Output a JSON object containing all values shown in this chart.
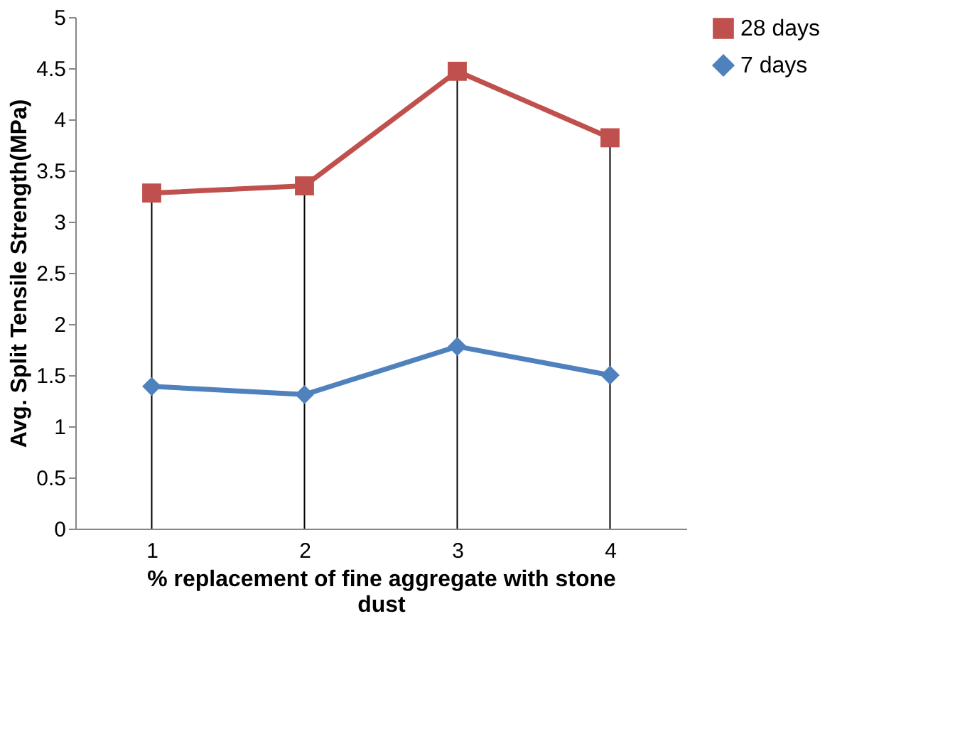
{
  "chart_data": {
    "type": "line",
    "xlabel": "% replacement of fine aggregate with stone dust",
    "ylabel": "Avg. Split Tensile Strength(MPa)",
    "categories": [
      "1",
      "2",
      "3",
      "4"
    ],
    "series": [
      {
        "name": "28 days",
        "color": "#c0504d",
        "marker": "square",
        "values": [
          3.28,
          3.35,
          4.47,
          3.82
        ]
      },
      {
        "name": "7 days",
        "color": "#4f81bd",
        "marker": "diamond",
        "values": [
          1.39,
          1.31,
          1.78,
          1.5
        ]
      }
    ],
    "ylim": [
      0,
      5
    ],
    "yticks": [
      0,
      0.5,
      1,
      1.5,
      2,
      2.5,
      3,
      3.5,
      4,
      4.5,
      5
    ],
    "grid": false,
    "ref_lines": [
      {
        "axis": "x",
        "value": "1"
      },
      {
        "axis": "x",
        "value": "2"
      },
      {
        "axis": "x",
        "value": "3"
      },
      {
        "axis": "x",
        "value": "4"
      }
    ],
    "legend": "right"
  }
}
